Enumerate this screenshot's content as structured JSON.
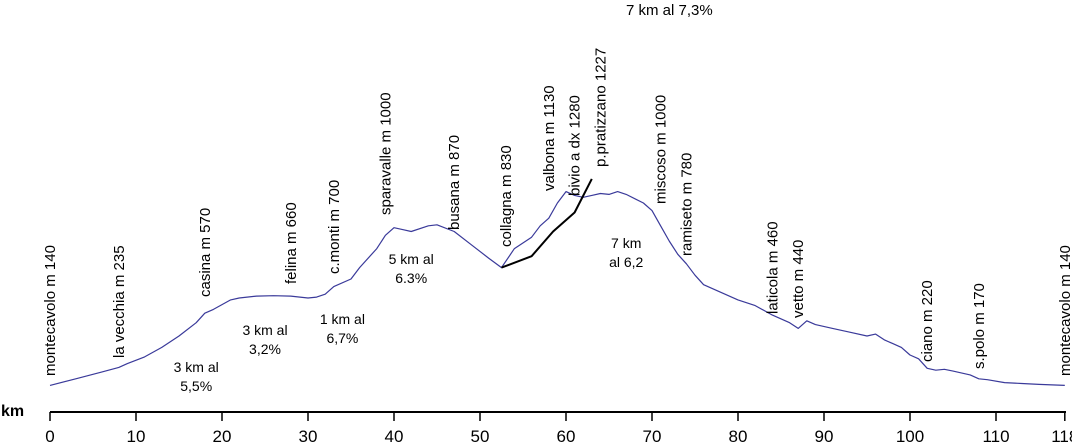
{
  "chart_data": {
    "type": "line",
    "title": "",
    "xlabel": "km",
    "ylabel": "",
    "xlim": [
      0,
      119
    ],
    "ylim": [
      0,
      1300
    ],
    "x_ticks": [
      "0",
      "10",
      "20",
      "30",
      "40",
      "50",
      "60",
      "70",
      "80",
      "90",
      "100",
      "110",
      "118"
    ],
    "grid": false,
    "line_color": "#3a3a9a",
    "variant_color": "#000000",
    "series": [
      {
        "points": [
          [
            0,
            140
          ],
          [
            3,
            175
          ],
          [
            6,
            210
          ],
          [
            8,
            235
          ],
          [
            9,
            255
          ],
          [
            11,
            290
          ],
          [
            13,
            340
          ],
          [
            15,
            400
          ],
          [
            17,
            470
          ],
          [
            18,
            520
          ],
          [
            19,
            540
          ],
          [
            20,
            565
          ],
          [
            21,
            590
          ],
          [
            22,
            600
          ],
          [
            24,
            610
          ],
          [
            26,
            612
          ],
          [
            28,
            610
          ],
          [
            30,
            600
          ],
          [
            31,
            605
          ],
          [
            32,
            620
          ],
          [
            33,
            660
          ],
          [
            35,
            700
          ],
          [
            36,
            760
          ],
          [
            38,
            860
          ],
          [
            39,
            930
          ],
          [
            40,
            970
          ],
          [
            41,
            960
          ],
          [
            42,
            950
          ],
          [
            44,
            980
          ],
          [
            45,
            985
          ],
          [
            47,
            950
          ],
          [
            49,
            880
          ],
          [
            51,
            810
          ],
          [
            52.5,
            760
          ],
          [
            54,
            860
          ],
          [
            56,
            920
          ],
          [
            57,
            980
          ],
          [
            58,
            1020
          ],
          [
            59,
            1100
          ],
          [
            60,
            1160
          ],
          [
            61,
            1140
          ],
          [
            62,
            1130
          ],
          [
            63,
            1140
          ],
          [
            64,
            1150
          ],
          [
            65,
            1145
          ],
          [
            66,
            1160
          ],
          [
            67,
            1145
          ],
          [
            69,
            1100
          ],
          [
            70,
            1060
          ],
          [
            71,
            980
          ],
          [
            72,
            900
          ],
          [
            73,
            830
          ],
          [
            74,
            780
          ],
          [
            75,
            720
          ],
          [
            76,
            670
          ],
          [
            78,
            630
          ],
          [
            80,
            590
          ],
          [
            82,
            560
          ],
          [
            84,
            510
          ],
          [
            86,
            470
          ],
          [
            87,
            440
          ],
          [
            88,
            480
          ],
          [
            89,
            460
          ],
          [
            91,
            440
          ],
          [
            93,
            420
          ],
          [
            95,
            400
          ],
          [
            96,
            410
          ],
          [
            97,
            380
          ],
          [
            98,
            360
          ],
          [
            99,
            340
          ],
          [
            100,
            300
          ],
          [
            101,
            280
          ],
          [
            102,
            230
          ],
          [
            103,
            220
          ],
          [
            104,
            225
          ],
          [
            105,
            215
          ],
          [
            107,
            195
          ],
          [
            108,
            175
          ],
          [
            109,
            170
          ],
          [
            111,
            155
          ],
          [
            113,
            150
          ],
          [
            115,
            145
          ],
          [
            118,
            140
          ]
        ]
      },
      {
        "points": [
          [
            52.5,
            760
          ],
          [
            56,
            820
          ],
          [
            58.5,
            950
          ],
          [
            61,
            1050
          ],
          [
            63,
            1227
          ]
        ]
      }
    ],
    "places": [
      {
        "km": 0,
        "label": "montecavolo m 140"
      },
      {
        "km": 8,
        "label": "la vecchia m 235"
      },
      {
        "km": 18,
        "label": "casina m 570"
      },
      {
        "km": 28,
        "label": "felina m 660"
      },
      {
        "km": 33,
        "label": "c.monti m 700"
      },
      {
        "km": 39,
        "label": "sparavalle m 1000"
      },
      {
        "km": 47,
        "label": "busana m 870"
      },
      {
        "km": 53,
        "label": "collagna m 830"
      },
      {
        "km": 58,
        "label": "valbona m 1130"
      },
      {
        "km": 61,
        "label": "bivio a dx 1280"
      },
      {
        "km": 64,
        "label": "p.pratizzano 1227"
      },
      {
        "km": 71,
        "label": "miscoso m 1000"
      },
      {
        "km": 74,
        "label": "ramiseto m 780"
      },
      {
        "km": 84,
        "label": "laticola m 460"
      },
      {
        "km": 87,
        "label": "vetto m 440"
      },
      {
        "km": 102,
        "label": "ciano m 220"
      },
      {
        "km": 108,
        "label": "s.polo m 170"
      },
      {
        "km": 118,
        "label": "montecavolo m 140"
      }
    ],
    "grade_notes": [
      {
        "km": 17,
        "lines": [
          "3 km al",
          "5,5%"
        ]
      },
      {
        "km": 25,
        "lines": [
          "3 km al",
          "3,2%"
        ]
      },
      {
        "km": 34,
        "lines": [
          "1 km al",
          "6,7%"
        ]
      },
      {
        "km": 42,
        "lines": [
          "5 km al",
          "6.3%"
        ]
      },
      {
        "km": 67,
        "lines": [
          "7 km",
          "al 6,2"
        ]
      }
    ],
    "top_note": "7 km al 7,3%"
  }
}
